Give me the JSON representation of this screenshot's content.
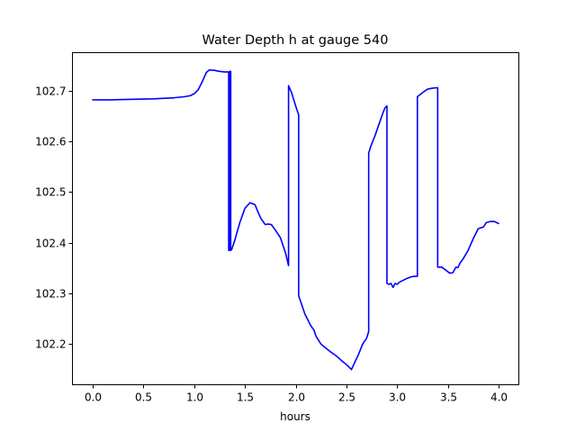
{
  "chart_data": {
    "type": "line",
    "title": "Water Depth h at gauge 540",
    "xlabel": "hours",
    "ylabel": "",
    "xlim": [
      -0.2,
      4.2
    ],
    "ylim": [
      102.12,
      102.775
    ],
    "xticks": [
      0.0,
      0.5,
      1.0,
      1.5,
      2.0,
      2.5,
      3.0,
      3.5,
      4.0
    ],
    "xtick_labels": [
      "0.0",
      "0.5",
      "1.0",
      "1.5",
      "2.0",
      "2.5",
      "3.0",
      "3.5",
      "4.0"
    ],
    "yticks": [
      102.2,
      102.3,
      102.4,
      102.5,
      102.6,
      102.7
    ],
    "ytick_labels": [
      "102.2",
      "102.3",
      "102.4",
      "102.5",
      "102.6",
      "102.7"
    ],
    "grid": false,
    "series": [
      {
        "color": "#0000ff",
        "x": [
          0.0,
          0.2,
          0.4,
          0.6,
          0.8,
          0.9,
          0.96,
          1.0,
          1.04,
          1.08,
          1.12,
          1.15,
          1.2,
          1.25,
          1.3,
          1.34,
          1.34,
          1.35,
          1.35,
          1.36,
          1.36,
          1.37,
          1.4,
          1.45,
          1.5,
          1.55,
          1.6,
          1.63,
          1.66,
          1.7,
          1.73,
          1.76,
          1.8,
          1.85,
          1.9,
          1.93,
          1.93,
          1.96,
          2.0,
          2.03,
          2.03,
          2.06,
          2.09,
          2.12,
          2.15,
          2.18,
          2.2,
          2.25,
          2.3,
          2.35,
          2.4,
          2.45,
          2.5,
          2.55,
          2.58,
          2.62,
          2.66,
          2.7,
          2.72,
          2.72,
          2.74,
          2.78,
          2.82,
          2.86,
          2.88,
          2.9,
          2.9,
          2.92,
          2.94,
          2.96,
          2.98,
          3.0,
          3.02,
          3.06,
          3.1,
          3.14,
          3.18,
          3.2,
          3.2,
          3.25,
          3.3,
          3.35,
          3.4,
          3.4,
          3.44,
          3.48,
          3.52,
          3.55,
          3.58,
          3.6,
          3.62,
          3.65,
          3.7,
          3.75,
          3.8,
          3.85,
          3.88,
          3.92,
          3.96,
          4.0
        ],
        "y": [
          102.682,
          102.682,
          102.683,
          102.684,
          102.686,
          102.688,
          102.69,
          102.694,
          102.702,
          102.718,
          102.736,
          102.741,
          102.74,
          102.738,
          102.737,
          102.737,
          102.385,
          102.385,
          102.738,
          102.738,
          102.385,
          102.387,
          102.405,
          102.44,
          102.468,
          102.479,
          102.475,
          102.46,
          102.447,
          102.436,
          102.437,
          102.436,
          102.425,
          102.41,
          102.38,
          102.355,
          102.71,
          102.696,
          102.67,
          102.652,
          102.295,
          102.278,
          102.26,
          102.248,
          102.236,
          102.228,
          102.216,
          102.2,
          102.192,
          102.184,
          102.177,
          102.168,
          102.16,
          102.15,
          102.163,
          102.18,
          102.2,
          102.212,
          102.225,
          102.577,
          102.59,
          102.61,
          102.633,
          102.656,
          102.666,
          102.67,
          102.32,
          102.318,
          102.32,
          102.312,
          102.32,
          102.318,
          102.322,
          102.326,
          102.33,
          102.333,
          102.334,
          102.334,
          102.688,
          102.696,
          102.703,
          102.705,
          102.706,
          102.352,
          102.352,
          102.346,
          102.34,
          102.341,
          102.352,
          102.351,
          102.36,
          102.368,
          102.385,
          102.408,
          102.428,
          102.431,
          102.44,
          102.442,
          102.442,
          102.438
        ]
      }
    ]
  }
}
